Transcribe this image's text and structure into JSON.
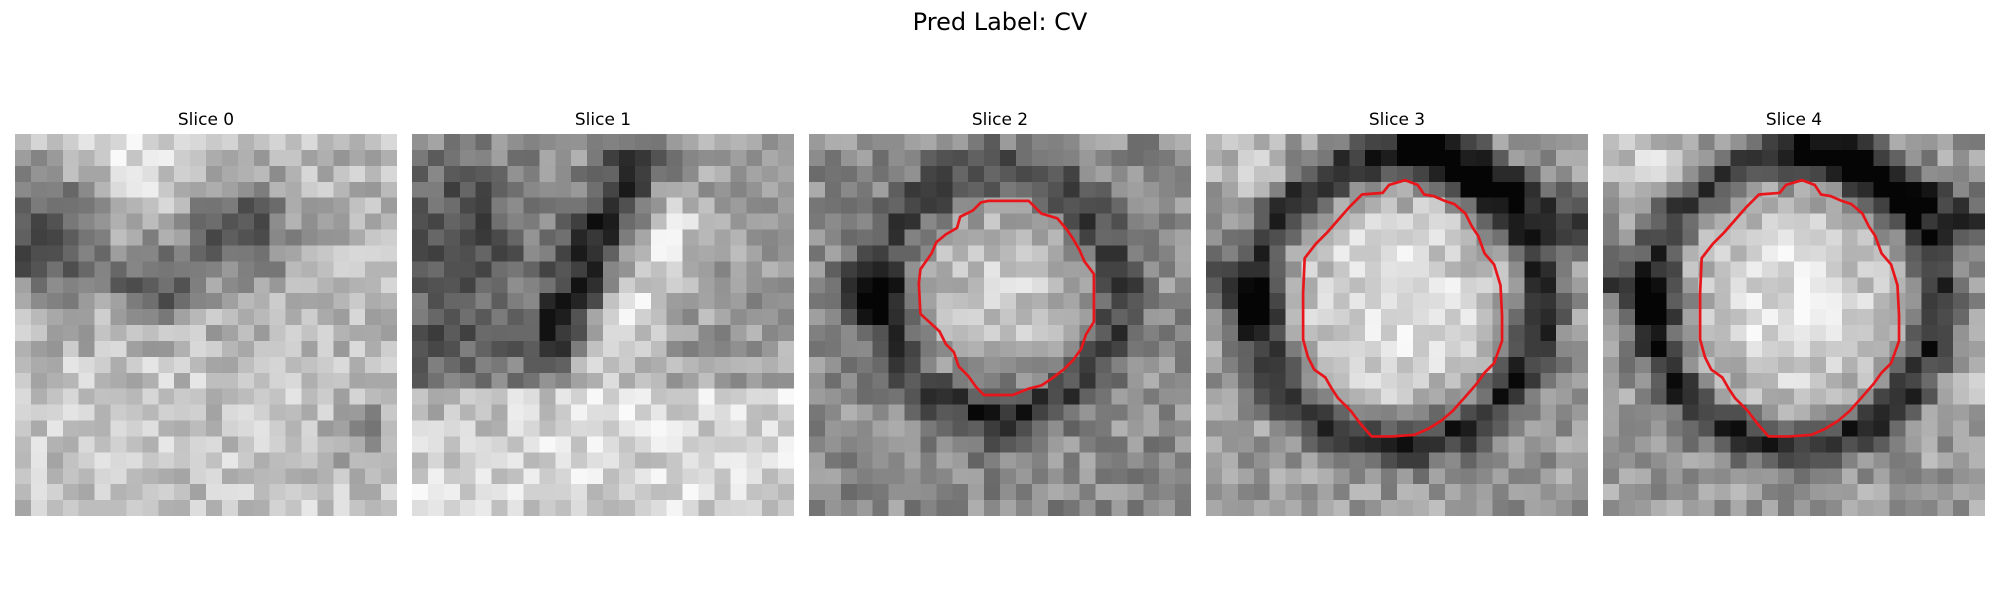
{
  "figure": {
    "title": "Pred Label: CV"
  },
  "slices": [
    {
      "label": "Slice 0",
      "has_contour": false
    },
    {
      "label": "Slice 1",
      "has_contour": false
    },
    {
      "label": "Slice 2",
      "has_contour": true
    },
    {
      "label": "Slice 3",
      "has_contour": true
    },
    {
      "label": "Slice 4",
      "has_contour": true
    }
  ],
  "colors": {
    "contour": "#e8161b",
    "background": "#ffffff"
  }
}
